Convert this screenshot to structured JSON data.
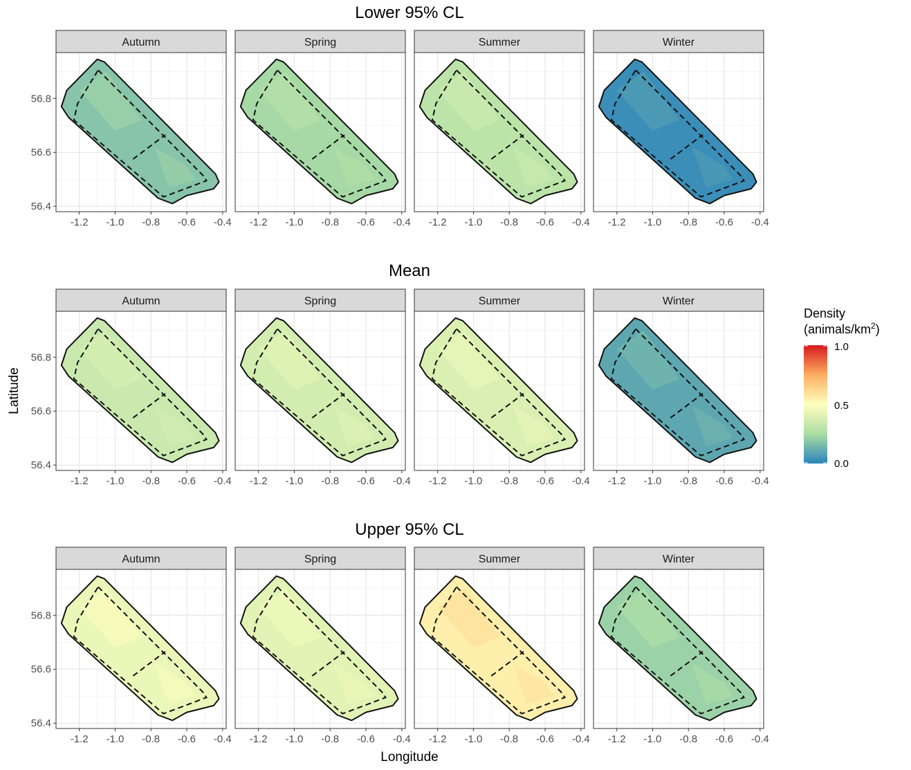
{
  "figure": {
    "xlabel": "Longitude",
    "ylabel": "Latitude"
  },
  "legend": {
    "title_line1": "Density",
    "title_line2_prefix": "(animals/km",
    "title_line2_sup": "2",
    "title_line2_suffix": ")",
    "ticks": [
      "1.0",
      "0.5",
      "0.0"
    ],
    "colors": [
      "#d7191c",
      "#fdae61",
      "#ffffbf",
      "#abdda4",
      "#2b83ba"
    ]
  },
  "chart_data": {
    "type": "heatmap",
    "description_type": "faceted spatial density maps",
    "x_ticks": [
      "-1.2",
      "-1.0",
      "-0.8",
      "-0.6",
      "-0.4"
    ],
    "y_ticks": [
      "56.8",
      "56.6",
      "56.4"
    ],
    "xlim": [
      -1.33,
      -0.38
    ],
    "ylim": [
      56.38,
      56.97
    ],
    "color_range": [
      0.0,
      1.0
    ],
    "seasons": [
      "Autumn",
      "Spring",
      "Summer",
      "Winter"
    ],
    "rows": [
      {
        "title": "Lower 95% CL",
        "density_level": [
          0.18,
          0.24,
          0.3,
          0.03
        ]
      },
      {
        "title": "Mean",
        "density_level": [
          0.34,
          0.37,
          0.39,
          0.1
        ]
      },
      {
        "title": "Upper 95% CL",
        "density_level": [
          0.44,
          0.41,
          0.55,
          0.22
        ]
      }
    ]
  }
}
